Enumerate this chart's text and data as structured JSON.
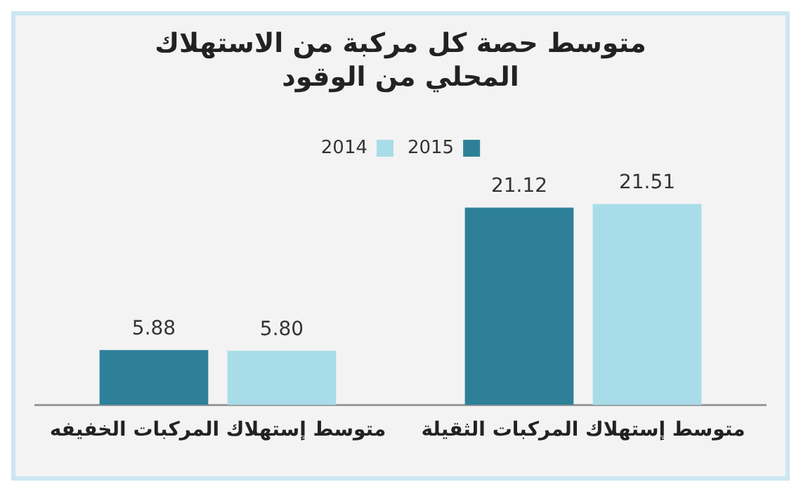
{
  "chart_data": {
    "type": "bar",
    "title": "متوسط حصة كل مركبة من الاستهلاك المحلي من الوقود",
    "categories": [
      "متوسط إستهلاك المركبات الخفيفه",
      "متوسط إستهلاك المركبات الثقيلة"
    ],
    "series": [
      {
        "name": "2015",
        "color": "#2e8099",
        "values": [
          5.88,
          21.12
        ],
        "value_labels": [
          "5.88",
          "21.12"
        ]
      },
      {
        "name": "2014",
        "color": "#a9dce9",
        "values": [
          5.8,
          21.51
        ],
        "value_labels": [
          "5.80",
          "21.51"
        ]
      }
    ],
    "legend": "top",
    "grid": false,
    "tick_labels": "x"
  }
}
